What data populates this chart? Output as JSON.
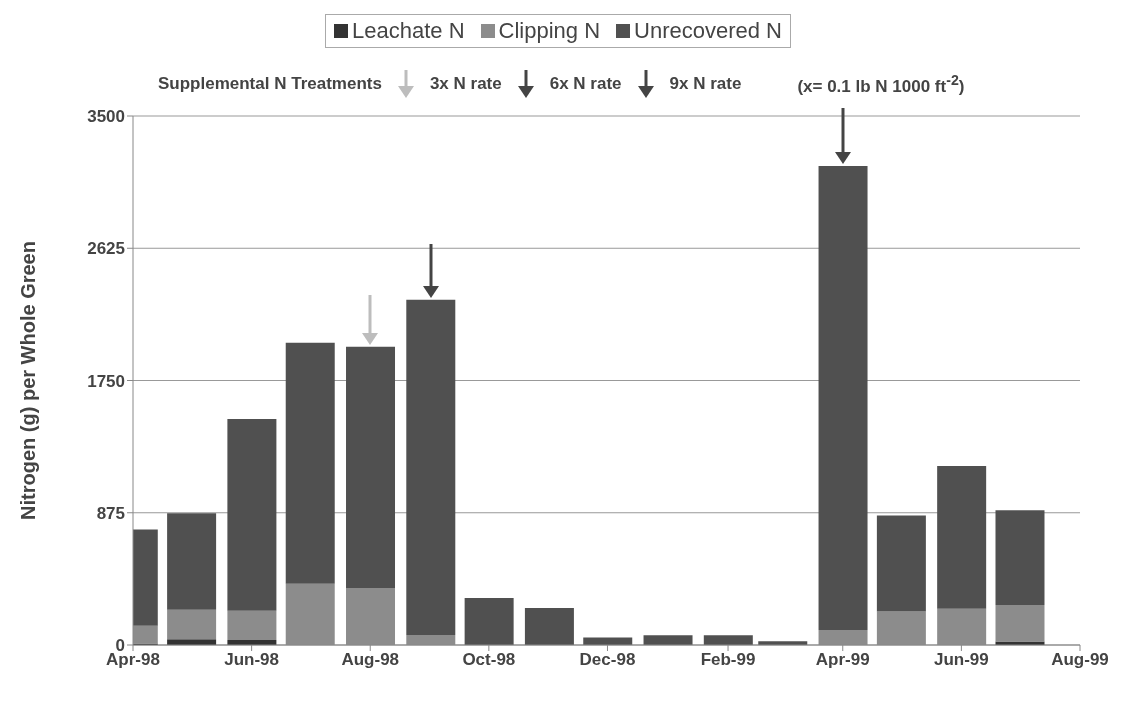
{
  "chart_data": {
    "type": "bar",
    "stacked": true,
    "ylabel": "Nitrogen (g) per Whole Green",
    "annotations": [
      "Supplemental N Treatments",
      "3x N rate",
      "6x N rate",
      "9x N rate",
      "(x= 0.1 lb N 1000 ft$^{-2}$)"
    ],
    "x": [
      "1998-04",
      "1998-05",
      "1998-06",
      "1998-07",
      "1998-08",
      "1998-09",
      "1998-10",
      "1998-11",
      "1998-12",
      "1999-01",
      "1999-02",
      "1999-03",
      "1999-04",
      "1999-05",
      "1999-06",
      "1999-07"
    ],
    "series": [
      {
        "name": "Leachate N",
        "color": "#333333",
        "values": [
          10,
          38,
          33,
          0,
          0,
          0,
          0,
          0,
          0,
          0,
          0,
          0,
          0,
          0,
          0,
          23
        ]
      },
      {
        "name": "Clipping N",
        "color": "#8c8c8c",
        "values": [
          117,
          195,
          194,
          406,
          377,
          66,
          0,
          0,
          0,
          0,
          0,
          0,
          100,
          222,
          240,
          242
        ]
      },
      {
        "name": "Unrecovered N",
        "color": "#505050",
        "values": [
          638,
          638,
          1268,
          1594,
          1596,
          2218,
          311,
          245,
          50,
          65,
          65,
          25,
          3069,
          635,
          945,
          627
        ]
      }
    ],
    "xlim": [
      "1998-04",
      "1999-08"
    ],
    "xticks": [
      {
        "value": "1998-04",
        "label": "Apr-98"
      },
      {
        "value": "1998-06",
        "label": "Jun-98"
      },
      {
        "value": "1998-08",
        "label": "Aug-98"
      },
      {
        "value": "1998-10",
        "label": "Oct-98"
      },
      {
        "value": "1998-12",
        "label": "Dec-98"
      },
      {
        "value": "1999-02",
        "label": "Feb-99"
      },
      {
        "value": "1999-04",
        "label": "Apr-99"
      },
      {
        "value": "1999-06",
        "label": "Jun-99"
      },
      {
        "value": "1999-08",
        "label": "Aug-99"
      }
    ],
    "ylim": [
      0,
      3500
    ],
    "yticks": [
      0,
      875,
      1750,
      2625,
      3500
    ],
    "grid": "y",
    "legend": "top"
  }
}
